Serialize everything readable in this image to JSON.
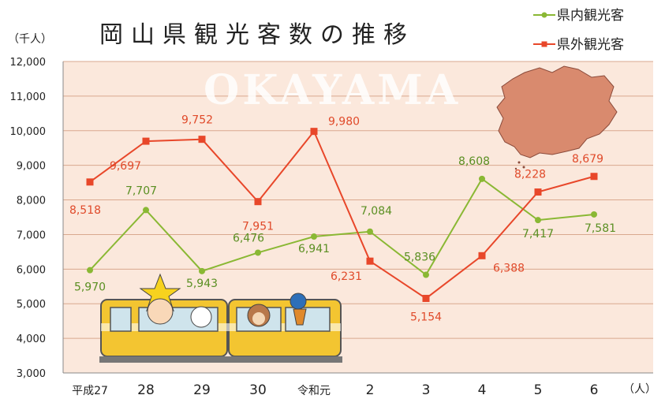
{
  "chart_data": {
    "type": "line",
    "title": "岡山県観光客数の推移",
    "y_unit": "（千人）",
    "x_unit": "（人）",
    "watermark": "OKAYAMA",
    "categories": [
      "平成27",
      "28",
      "29",
      "30",
      "令和元",
      "2",
      "3",
      "4",
      "5",
      "6"
    ],
    "ylim": [
      3000,
      12000
    ],
    "yticks": [
      3000,
      4000,
      5000,
      6000,
      7000,
      8000,
      9000,
      10000,
      11000,
      12000
    ],
    "ytick_labels": [
      "3,000",
      "4,000",
      "5,000",
      "6,000",
      "7,000",
      "8,000",
      "9,000",
      "10,000",
      "11,000",
      "12,000"
    ],
    "grid": true,
    "legend_position": "top-right",
    "series": [
      {
        "name": "県内観光客",
        "color": "#8ab834",
        "marker": "circle",
        "values": [
          5970,
          7707,
          5943,
          6476,
          6941,
          7084,
          5836,
          8608,
          7417,
          7581
        ],
        "labels": [
          "5,970",
          "7,707",
          "5,943",
          "6,476",
          "6,941",
          "7,084",
          "5,836",
          "8,608",
          "7,417",
          "7,581"
        ]
      },
      {
        "name": "県外観光客",
        "color": "#e8472a",
        "marker": "square",
        "values": [
          8518,
          9697,
          9752,
          7951,
          9980,
          6231,
          5154,
          6388,
          8228,
          8679
        ],
        "labels": [
          "8,518",
          "9,697",
          "9,752",
          "7,951",
          "9,980",
          "6,231",
          "5,154",
          "6,388",
          "8,228",
          "8,679"
        ]
      }
    ]
  }
}
